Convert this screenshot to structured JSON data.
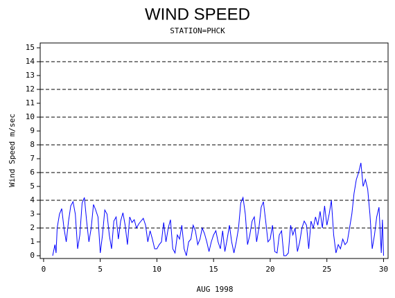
{
  "chart_data": {
    "type": "line",
    "title": "WIND SPEED",
    "subtitle": "STATION=PHCK",
    "x_label": "AUG 1998",
    "y_label": "Wind Speed m/sec",
    "x": [
      0.8,
      1.0,
      1.1,
      1.2,
      1.4,
      1.6,
      1.8,
      2.0,
      2.2,
      2.4,
      2.6,
      2.8,
      3.0,
      3.2,
      3.4,
      3.6,
      3.8,
      4.0,
      4.2,
      4.4,
      4.6,
      4.8,
      5.0,
      5.2,
      5.4,
      5.6,
      5.8,
      6.0,
      6.2,
      6.4,
      6.6,
      6.8,
      7.0,
      7.2,
      7.4,
      7.6,
      7.8,
      8.0,
      8.2,
      8.4,
      8.6,
      8.8,
      9.0,
      9.2,
      9.4,
      9.6,
      9.8,
      10.0,
      10.2,
      10.4,
      10.6,
      10.8,
      11.0,
      11.2,
      11.4,
      11.6,
      11.8,
      12.0,
      12.2,
      12.4,
      12.6,
      12.8,
      13.0,
      13.2,
      13.4,
      13.6,
      13.8,
      14.0,
      14.2,
      14.4,
      14.6,
      14.8,
      15.0,
      15.2,
      15.4,
      15.6,
      15.8,
      16.0,
      16.2,
      16.4,
      16.6,
      16.8,
      17.0,
      17.2,
      17.4,
      17.6,
      17.8,
      18.0,
      18.2,
      18.4,
      18.6,
      18.8,
      19.0,
      19.2,
      19.4,
      19.6,
      19.8,
      20.0,
      20.2,
      20.4,
      20.6,
      20.8,
      21.0,
      21.2,
      21.4,
      21.6,
      21.8,
      22.0,
      22.2,
      22.4,
      22.6,
      22.8,
      23.0,
      23.2,
      23.4,
      23.6,
      23.8,
      24.0,
      24.2,
      24.4,
      24.6,
      24.8,
      25.0,
      25.2,
      25.4,
      25.6,
      25.8,
      26.0,
      26.2,
      26.4,
      26.6,
      26.8,
      27.0,
      27.2,
      27.4,
      27.6,
      27.8,
      28.0,
      28.2,
      28.4,
      28.6,
      28.8,
      29.0,
      29.2,
      29.4,
      29.6,
      29.8,
      29.9,
      30.0
    ],
    "series": [
      {
        "name": "Wind Speed",
        "color": "#0000ff",
        "values": [
          0,
          0.8,
          0.2,
          2.0,
          3.0,
          3.4,
          2.0,
          1.0,
          2.5,
          3.6,
          3.9,
          3.0,
          0.5,
          1.5,
          3.8,
          4.2,
          2.5,
          1.0,
          2.0,
          3.7,
          3.3,
          2.8,
          0.2,
          1.5,
          3.3,
          3.0,
          1.5,
          0.5,
          2.5,
          2.8,
          1.2,
          2.5,
          3.1,
          2.2,
          0.8,
          2.8,
          2.4,
          2.6,
          2.0,
          2.3,
          2.5,
          2.7,
          2.2,
          1.0,
          1.8,
          1.2,
          0.5,
          0.5,
          0.8,
          1.0,
          2.4,
          1.0,
          2.0,
          2.6,
          0.5,
          0.2,
          1.5,
          1.2,
          2.2,
          0.5,
          0,
          1.0,
          1.2,
          2.2,
          1.8,
          0.8,
          1.2,
          2.0,
          1.6,
          1.0,
          0.3,
          1.0,
          1.5,
          1.8,
          1.0,
          0.5,
          1.8,
          0.3,
          1.2,
          2.2,
          1.0,
          0.2,
          1.0,
          2.0,
          3.8,
          4.2,
          3.0,
          0.8,
          1.5,
          2.5,
          2.8,
          1.0,
          2.0,
          3.5,
          3.9,
          2.5,
          1.0,
          1.2,
          2.2,
          0.3,
          0.2,
          1.5,
          1.8,
          0,
          0,
          0.2,
          2.2,
          1.5,
          2.0,
          0.3,
          1.0,
          2.0,
          2.5,
          2.2,
          0.5,
          2.5,
          2.0,
          2.8,
          2.2,
          3.2,
          2.0,
          3.6,
          2.2,
          3.0,
          4.0,
          1.5,
          0.2,
          0.8,
          0.5,
          1.2,
          0.8,
          1.0,
          2.0,
          3.0,
          4.5,
          5.5,
          6.0,
          6.7,
          5.0,
          5.5,
          4.8,
          3.0,
          0.5,
          1.5,
          2.8,
          3.5,
          0.2,
          2.6,
          0
        ]
      }
    ],
    "xlim": [
      -0.3,
      30.4
    ],
    "xticks": [
      0,
      5,
      10,
      15,
      20,
      25,
      30
    ],
    "ylim": [
      -0.2,
      15.35
    ],
    "yticks": [
      0,
      1,
      2,
      3,
      4,
      5,
      6,
      7,
      8,
      9,
      10,
      11,
      12,
      13,
      14,
      15
    ],
    "grid_lines": [
      2,
      4,
      6,
      8,
      10,
      12,
      14
    ]
  }
}
